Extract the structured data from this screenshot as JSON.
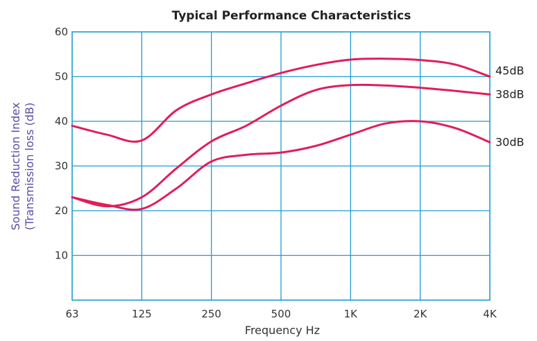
{
  "chart_data": {
    "type": "line",
    "title": "Typical Performance Characteristics",
    "xlabel": "Frequency Hz",
    "ylabel_line1": "Sound Reduction Index",
    "ylabel_line2": "(Transmission loss (dB)",
    "categories": [
      "63",
      "125",
      "250",
      "500",
      "1K",
      "2K",
      "4K"
    ],
    "yticks": [
      "10",
      "20",
      "30",
      "40",
      "50",
      "60"
    ],
    "ylim": [
      0,
      60
    ],
    "grid": true,
    "colors": {
      "grid": "#1f9bd1",
      "series": "#e01d5a"
    },
    "series": [
      {
        "name": "45dB",
        "x": [
          0,
          0.5,
          1,
          1.5,
          2,
          2.5,
          3,
          3.5,
          4,
          4.5,
          5,
          5.5,
          6
        ],
        "values": [
          39,
          37,
          35.7,
          42.5,
          46,
          48.5,
          50.8,
          52.6,
          53.8,
          54,
          53.7,
          52.7,
          50
        ]
      },
      {
        "name": "38dB",
        "x": [
          0,
          0.5,
          1,
          1.5,
          2,
          2.5,
          3,
          3.5,
          4,
          4.5,
          5,
          5.5,
          6
        ],
        "values": [
          23,
          21,
          23,
          29.5,
          35.5,
          39,
          43.5,
          47,
          48.1,
          48,
          47.5,
          46.8,
          46
        ]
      },
      {
        "name": "30dB",
        "x": [
          0,
          0.5,
          1,
          1.5,
          2,
          2.5,
          3,
          3.5,
          4,
          4.5,
          5,
          5.5,
          6
        ],
        "values": [
          23,
          21.3,
          20.4,
          25,
          31,
          32.5,
          33,
          34.5,
          37,
          39.5,
          40,
          38.5,
          35.3
        ]
      }
    ]
  }
}
